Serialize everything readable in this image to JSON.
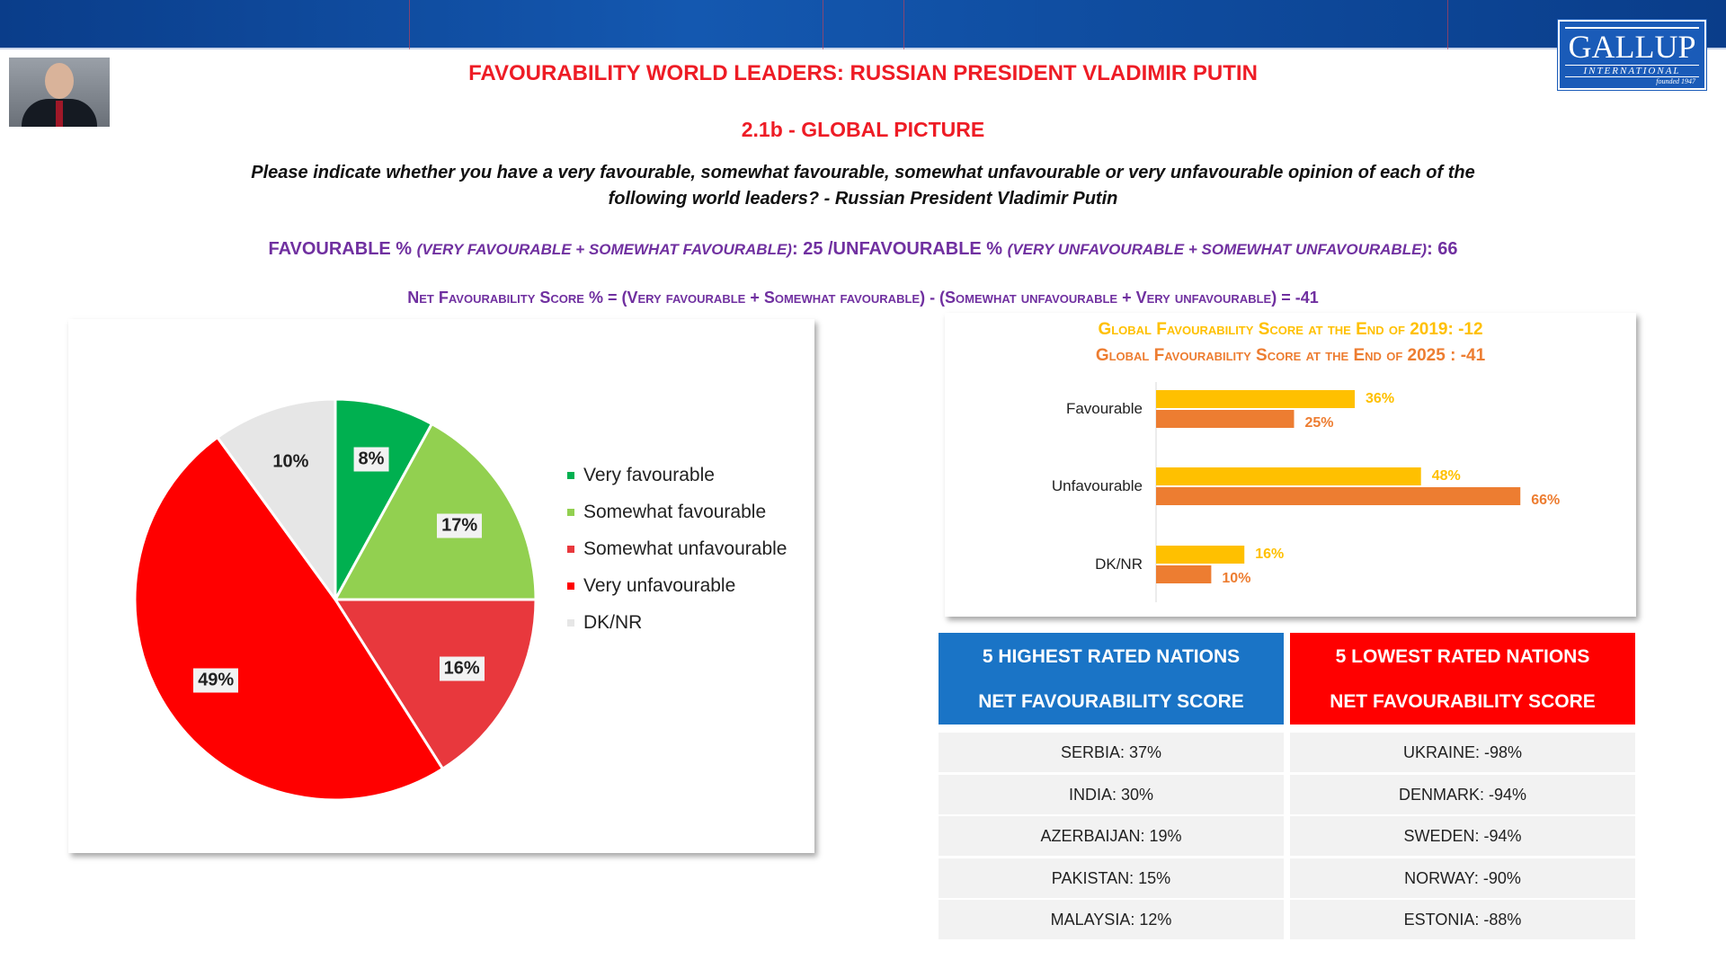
{
  "header": {
    "title": "FAVOURABILITY WORLD LEADERS: RUSSIAN PRESIDENT VLADIMIR PUTIN",
    "subtitle": "2.1b - GLOBAL PICTURE",
    "question": "Please indicate whether you have a very favourable, somewhat favourable, somewhat unfavourable or very unfavourable opinion of each of the following world leaders? - Russian President Vladimir Putin",
    "favourable_line": {
      "a": "FAVOURABLE % ",
      "b": "(VERY FAVOURABLE + SOMEWHAT FAVOURABLE)",
      "c": ": 25 /UNFAVOURABLE % ",
      "d": "(VERY UNFAVOURABLE + SOMEWHAT UNFAVOURABLE)",
      "e": ": 66"
    },
    "net_line": "Net Favourability Score % =  (Very favourable + Somewhat favourable) - (Somewhat unfavourable + Very unfavourable) = -41"
  },
  "logo": {
    "name": "GALLUP",
    "sub": "INTERNATIONAL",
    "founded": "founded 1947"
  },
  "colors": {
    "title": "#ee1c25",
    "purple": "#7030a0",
    "y2019": "#ffc000",
    "y2025": "#ed7d31",
    "blue": "#1a74c6",
    "red": "#ff0000"
  },
  "chart_data": [
    {
      "type": "pie",
      "slices": [
        {
          "label": "Very favourable",
          "value": 8,
          "color": "#00b050"
        },
        {
          "label": "Somewhat favourable",
          "value": 17,
          "color": "#92d050"
        },
        {
          "label": "Somewhat unfavourable",
          "value": 16,
          "color": "#e8383d"
        },
        {
          "label": "Very unfavourable",
          "value": 49,
          "color": "#ff0000"
        },
        {
          "label": "DK/NR",
          "value": 10,
          "color": "#e6e6e6"
        }
      ],
      "legend": "right"
    },
    {
      "type": "bar",
      "orientation": "horizontal",
      "title_lines": [
        "Global Favourability Score  at the End of 2019: -12",
        "Global Favourability Score  at the End of 2025 : -41"
      ],
      "categories": [
        "Favourable",
        "Unfavourable",
        "DK/NR"
      ],
      "series": [
        {
          "values": [
            36,
            48,
            16
          ],
          "color": "#ffc000"
        },
        {
          "values": [
            25,
            66,
            10
          ],
          "color": "#ed7d31"
        }
      ]
    }
  ],
  "tables": {
    "highest": {
      "header": [
        "5 HIGHEST RATED NATIONS",
        "NET FAVOURABILITY SCORE"
      ],
      "rows": [
        "SERBIA: 37%",
        "INDIA: 30%",
        "AZERBAIJAN: 19%",
        "PAKISTAN: 15%",
        "MALAYSIA: 12%"
      ]
    },
    "lowest": {
      "header": [
        "5 LOWEST RATED NATIONS",
        "NET FAVOURABILITY SCORE"
      ],
      "rows": [
        "UKRAINE: -98%",
        "DENMARK: -94%",
        "SWEDEN: -94%",
        "NORWAY: -90%",
        "ESTONIA: -88%"
      ]
    }
  }
}
